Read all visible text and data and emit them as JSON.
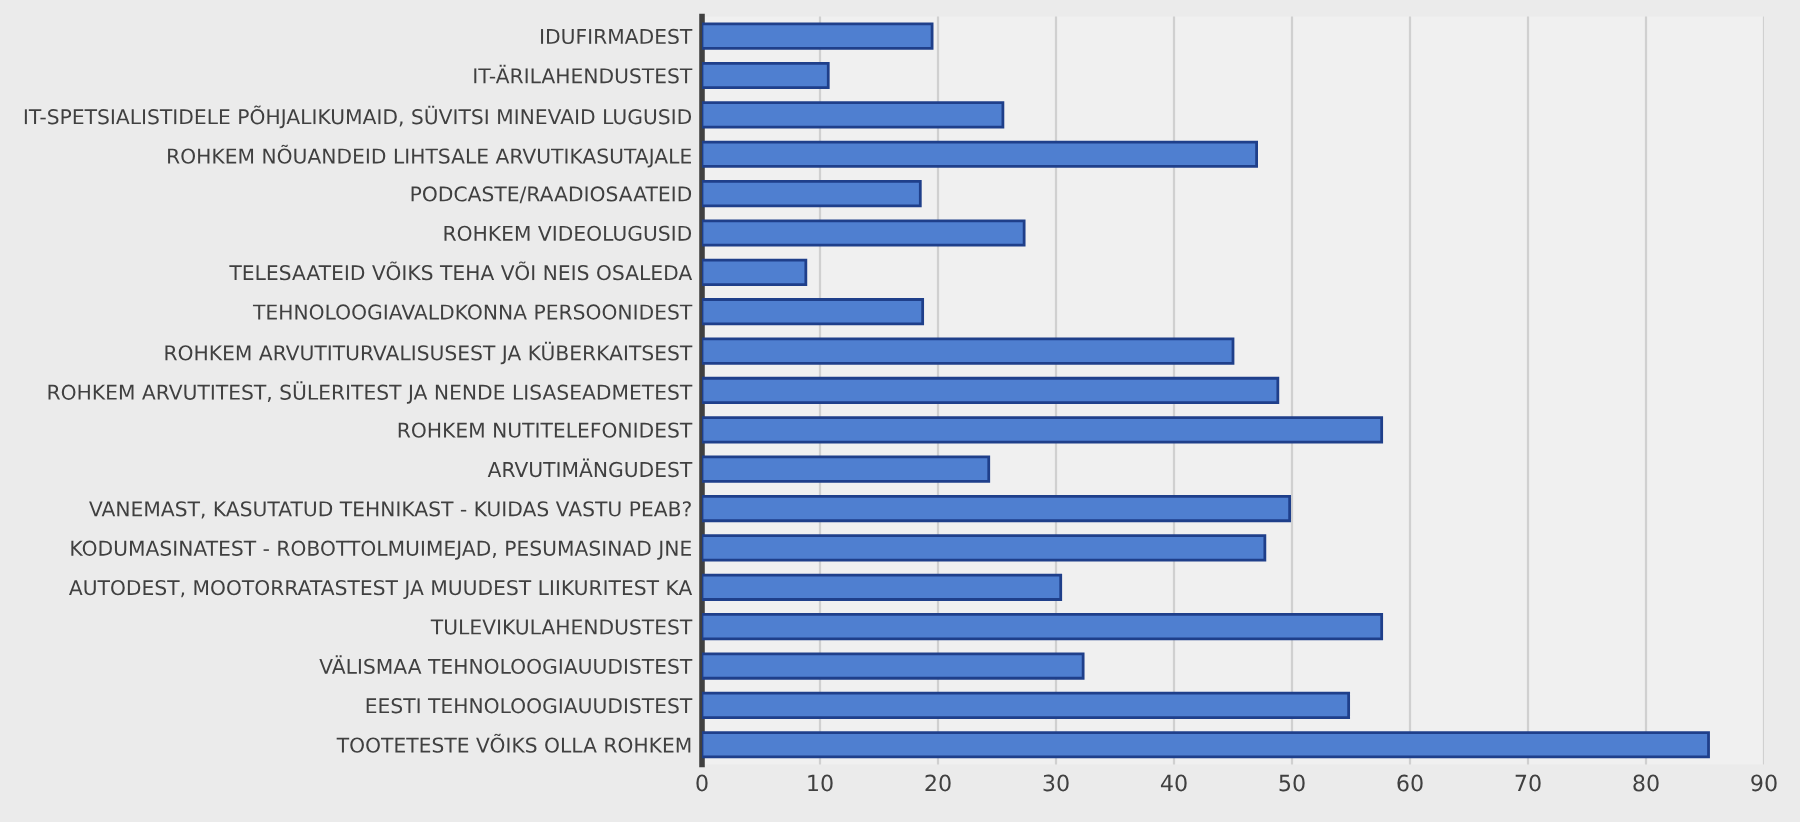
{
  "chart_data": {
    "type": "bar",
    "orientation": "horizontal",
    "categories": [
      "IDUFIRMADEST",
      "IT-ÄRILAHENDUSTEST",
      "IT-SPETSIALISTIDELE PÕHJALIKUMAID, SÜVITSI MINEVAID LUGUSID",
      "ROHKEM NÕUANDEID LIHTSALE ARVUTIKASUTAJALE",
      "PODCASTE/RAADIOSAATEID",
      "ROHKEM VIDEOLUGUSID",
      "TELESAATEID VÕIKS TEHA VÕI NEIS OSALEDA",
      "TEHNOLOOGIAVALDKONNA PERSOONIDEST",
      "ROHKEM ARVUTITURVALISUSEST JA KÜBERKAITSEST",
      "ROHKEM ARVUTITEST, SÜLERITEST JA NENDE LISASEADMETEST",
      "ROHKEM NUTITELEFONIDEST",
      "ARVUTIMÄNGUDEST",
      "VANEMAST, KASUTATUD TEHNIKAST - KUIDAS VASTU PEAB?",
      "KODUMASINATEST - ROBOTTOLMUIMEJAD, PESUMASINAD JNE",
      "AUTODEST, MOOTORRATASTEST JA MUUDEST LIIKURITEST KA",
      "TULEVIKULAHENDUSTEST",
      "VÄLISMAA TEHNOLOOGIAUUDISTEST",
      "EESTI TEHNOLOOGIAUUDISTEST",
      "TOOTETESTE VÕIKS OLLA ROHKEM"
    ],
    "values": [
      19.5,
      10.7,
      25.5,
      47,
      18.5,
      27.3,
      8.8,
      18.7,
      45,
      48.8,
      57.6,
      24.3,
      49.8,
      47.7,
      30.4,
      57.6,
      32.3,
      54.8,
      85.3
    ],
    "color": "#4f7fd0",
    "xlim": [
      0,
      90
    ],
    "xticks": [
      0,
      10,
      20,
      30,
      40,
      50,
      60,
      70,
      80,
      90
    ],
    "grid": "x",
    "legend": false
  }
}
